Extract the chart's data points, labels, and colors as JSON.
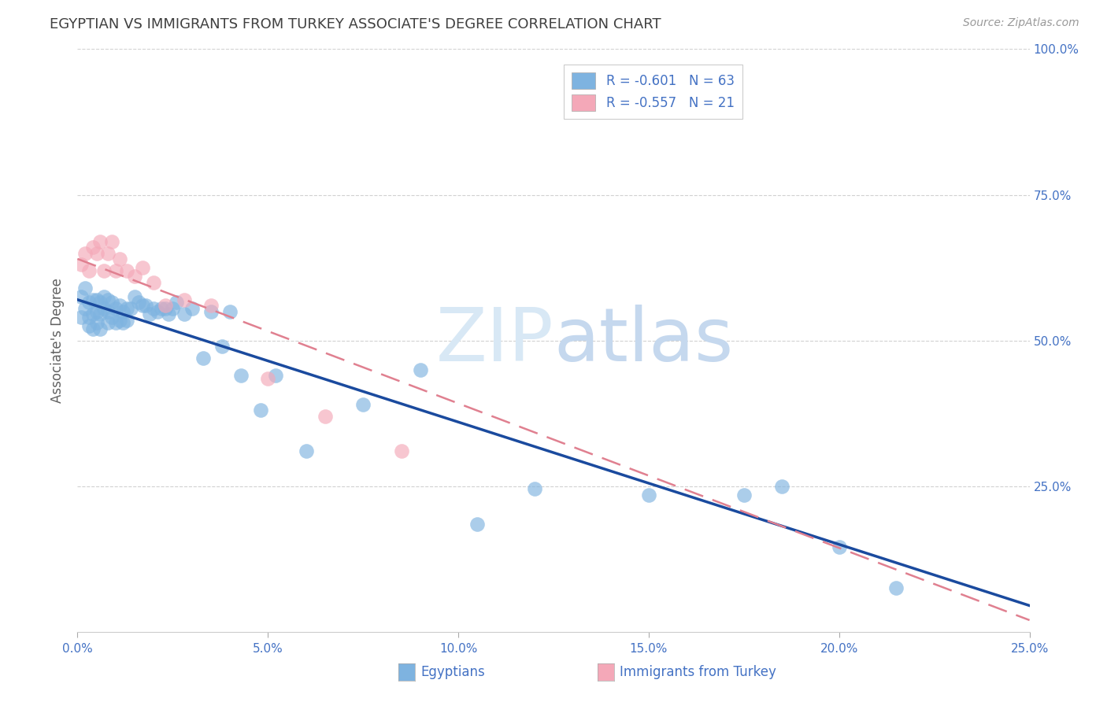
{
  "title": "EGYPTIAN VS IMMIGRANTS FROM TURKEY ASSOCIATE'S DEGREE CORRELATION CHART",
  "source": "Source: ZipAtlas.com",
  "ylabel": "Associate's Degree",
  "xlim": [
    0.0,
    0.25
  ],
  "ylim": [
    0.0,
    1.0
  ],
  "xtick_labels": [
    "0.0%",
    "5.0%",
    "10.0%",
    "15.0%",
    "20.0%",
    "25.0%"
  ],
  "xtick_vals": [
    0.0,
    0.05,
    0.1,
    0.15,
    0.2,
    0.25
  ],
  "ytick_labels": [
    "100.0%",
    "75.0%",
    "50.0%",
    "25.0%"
  ],
  "ytick_vals": [
    1.0,
    0.75,
    0.5,
    0.25
  ],
  "legend_entries": [
    {
      "label": "R = -0.601   N = 63",
      "color": "#aec6e8"
    },
    {
      "label": "R = -0.557   N = 21",
      "color": "#f4b8c1"
    }
  ],
  "egyptians_x": [
    0.001,
    0.001,
    0.002,
    0.002,
    0.003,
    0.003,
    0.003,
    0.004,
    0.004,
    0.004,
    0.005,
    0.005,
    0.005,
    0.006,
    0.006,
    0.006,
    0.007,
    0.007,
    0.008,
    0.008,
    0.008,
    0.009,
    0.009,
    0.01,
    0.01,
    0.011,
    0.011,
    0.012,
    0.012,
    0.013,
    0.013,
    0.014,
    0.015,
    0.016,
    0.017,
    0.018,
    0.019,
    0.02,
    0.021,
    0.022,
    0.023,
    0.024,
    0.025,
    0.026,
    0.028,
    0.03,
    0.033,
    0.035,
    0.038,
    0.04,
    0.043,
    0.048,
    0.052,
    0.06,
    0.075,
    0.09,
    0.105,
    0.12,
    0.15,
    0.175,
    0.185,
    0.2,
    0.215
  ],
  "egyptians_y": [
    0.575,
    0.54,
    0.59,
    0.555,
    0.565,
    0.54,
    0.525,
    0.57,
    0.545,
    0.52,
    0.57,
    0.55,
    0.53,
    0.565,
    0.545,
    0.52,
    0.575,
    0.555,
    0.57,
    0.55,
    0.53,
    0.565,
    0.54,
    0.555,
    0.53,
    0.56,
    0.535,
    0.55,
    0.53,
    0.555,
    0.535,
    0.555,
    0.575,
    0.565,
    0.56,
    0.56,
    0.545,
    0.555,
    0.55,
    0.555,
    0.555,
    0.545,
    0.555,
    0.565,
    0.545,
    0.555,
    0.47,
    0.55,
    0.49,
    0.55,
    0.44,
    0.38,
    0.44,
    0.31,
    0.39,
    0.45,
    0.185,
    0.245,
    0.235,
    0.235,
    0.25,
    0.145,
    0.075
  ],
  "turkey_x": [
    0.001,
    0.002,
    0.003,
    0.004,
    0.005,
    0.006,
    0.007,
    0.008,
    0.009,
    0.01,
    0.011,
    0.013,
    0.015,
    0.017,
    0.02,
    0.023,
    0.028,
    0.035,
    0.05,
    0.065,
    0.085
  ],
  "turkey_y": [
    0.63,
    0.65,
    0.62,
    0.66,
    0.65,
    0.67,
    0.62,
    0.65,
    0.67,
    0.62,
    0.64,
    0.62,
    0.61,
    0.625,
    0.6,
    0.56,
    0.57,
    0.56,
    0.435,
    0.37,
    0.31
  ],
  "blue_line_x": [
    0.0,
    0.25
  ],
  "blue_line_y": [
    0.57,
    0.045
  ],
  "pink_line_x": [
    0.0,
    0.25
  ],
  "pink_line_y": [
    0.64,
    0.02
  ],
  "egypt_color": "#7eb3e0",
  "turkey_color": "#f4a8b8",
  "blue_line_color": "#1a4a9e",
  "pink_line_color": "#e08090",
  "background_color": "#ffffff",
  "grid_color": "#cccccc",
  "title_color": "#404040",
  "axis_label_color": "#606060",
  "tick_color": "#4472c4",
  "watermark_zip": "ZIP",
  "watermark_atlas": "atlas",
  "watermark_color": "#d8e8f5"
}
